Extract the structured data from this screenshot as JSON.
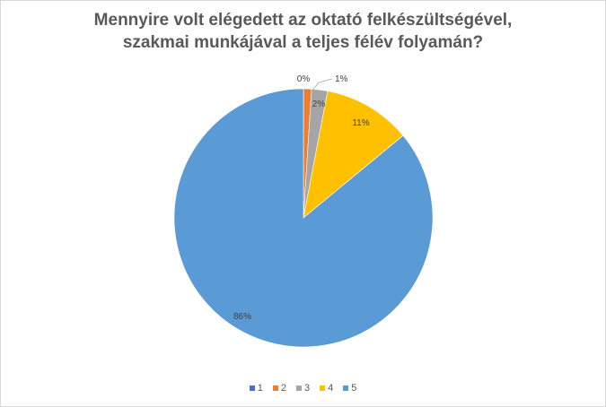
{
  "chart_data": {
    "type": "pie",
    "title_lines": [
      "Mennyire volt elégedett az oktató felkészültségével,",
      "szakmai munkájával  a teljes félév folyamán?"
    ],
    "categories": [
      "1",
      "2",
      "3",
      "4",
      "5"
    ],
    "values": [
      0,
      1,
      2,
      11,
      86
    ],
    "data_labels": [
      "0%",
      "1%",
      "2%",
      "11%",
      "86%"
    ],
    "colors": [
      "#4472c4",
      "#ed7d31",
      "#a5a5a5",
      "#ffc000",
      "#5b9bd5"
    ],
    "legend_position": "bottom"
  }
}
